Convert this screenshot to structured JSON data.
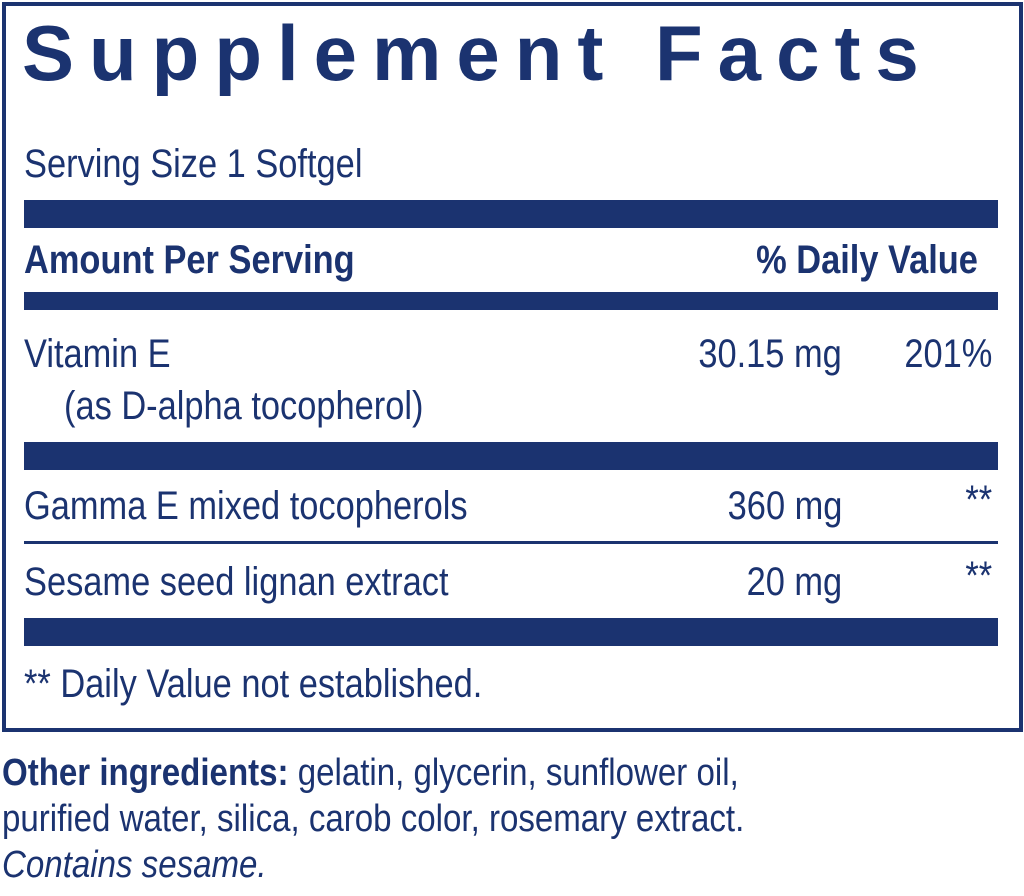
{
  "title": "Supplement Facts",
  "serving_size": "Serving Size 1 Softgel",
  "header": {
    "amount": "Amount Per Serving",
    "dv": "% Daily Value"
  },
  "rows": [
    {
      "name": "Vitamin E",
      "sub": "(as D-alpha tocopherol)",
      "amount": "30.15 mg",
      "dv": "201%"
    },
    {
      "name": "Gamma E mixed tocopherols",
      "amount": "360 mg",
      "dv": "**"
    },
    {
      "name": "Sesame seed lignan extract",
      "amount": "20 mg",
      "dv": "**"
    }
  ],
  "footnote": "** Daily Value not established.",
  "other_label": "Other ingredients:",
  "other_line1": " gelatin, glycerin, sunflower oil,",
  "other_line2": "purified water, silica, carob color, rosemary extract.",
  "contains": "Contains sesame.",
  "colors": {
    "navy": "#1b3370"
  }
}
